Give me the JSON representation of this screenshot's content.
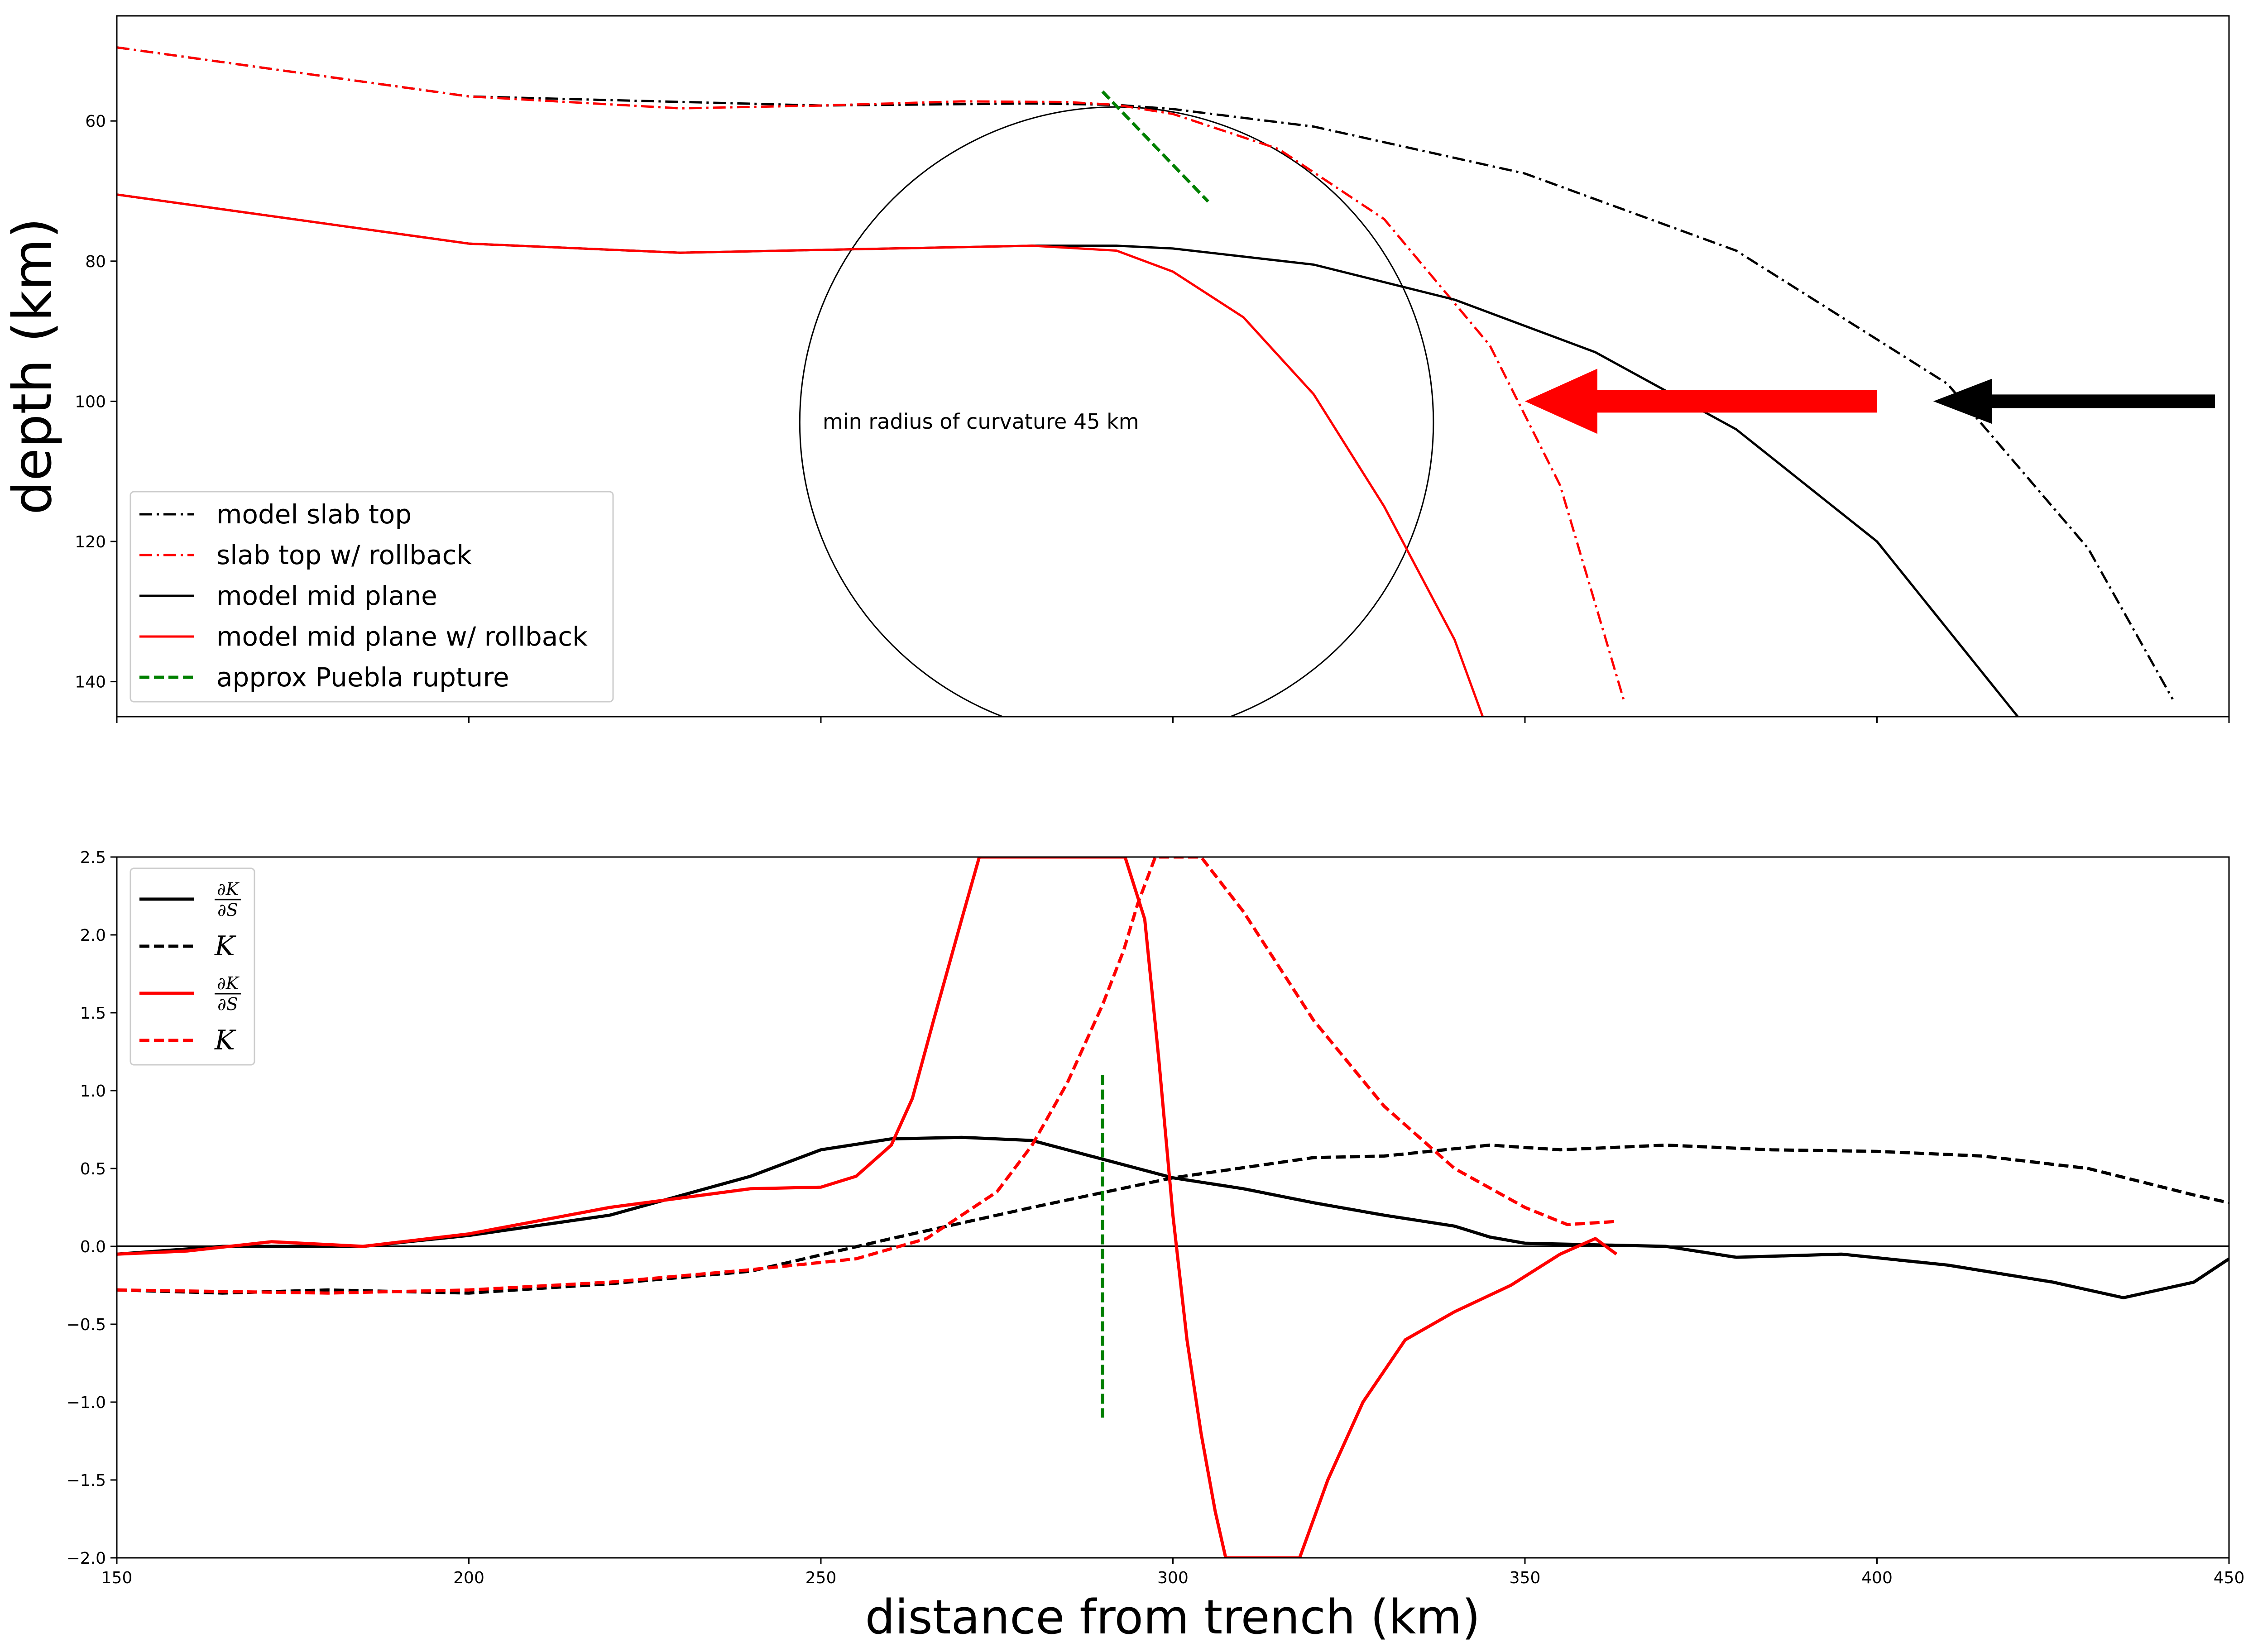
{
  "chart_data": [
    {
      "type": "line",
      "ylabel": "depth (km)",
      "xlim": [
        150,
        450
      ],
      "ylim": [
        145,
        45
      ],
      "yticks": [
        60,
        80,
        100,
        120,
        140
      ],
      "xticks": [
        150,
        200,
        250,
        300,
        350,
        400,
        450
      ],
      "legend_position": "lower-left",
      "series": [
        {
          "name": "model slab top",
          "color": "#000000",
          "dash": "dashdot",
          "x": [
            150,
            200,
            250,
            280,
            292,
            300,
            320,
            350,
            380,
            410,
            430,
            442
          ],
          "y": [
            49.5,
            56.5,
            57.8,
            57.5,
            57.7,
            58.3,
            60.8,
            67.5,
            78.5,
            97.5,
            121,
            142.5
          ]
        },
        {
          "name": "slab top w/ rollback",
          "color": "#ff0000",
          "dash": "dashdot",
          "x": [
            150,
            200,
            230,
            250,
            270,
            285,
            292,
            300,
            315,
            330,
            345,
            355,
            364
          ],
          "y": [
            49.5,
            56.5,
            58.2,
            57.8,
            57.2,
            57.3,
            57.7,
            59.0,
            64.0,
            74.0,
            92.0,
            112.0,
            142.5
          ]
        },
        {
          "name": "model mid plane",
          "color": "#000000",
          "dash": "solid",
          "x": [
            150,
            200,
            230,
            260,
            280,
            292,
            300,
            320,
            340,
            360,
            380,
            400,
            420
          ],
          "y": [
            70.5,
            77.5,
            78.8,
            78.2,
            77.8,
            77.8,
            78.2,
            80.5,
            85.5,
            93.0,
            104.0,
            120.0,
            145.0
          ]
        },
        {
          "name": "model mid plane w/ rollback",
          "color": "#ff0000",
          "dash": "solid",
          "x": [
            150,
            200,
            230,
            260,
            280,
            292,
            300,
            310,
            320,
            330,
            340,
            344
          ],
          "y": [
            70.5,
            77.5,
            78.8,
            78.2,
            77.8,
            78.5,
            81.5,
            88.0,
            99.0,
            115.0,
            134.0,
            145.0
          ]
        },
        {
          "name": "approx Puebla rupture",
          "color": "#008000",
          "dash": "dashed",
          "x": [
            290,
            305
          ],
          "y": [
            55.8,
            71.5
          ]
        }
      ],
      "circle": {
        "center_x": 292,
        "center_y": 103,
        "radius": 45
      },
      "annotations": [
        {
          "text": "min radius of curvature 45 km",
          "x": 250,
          "y": 103
        }
      ],
      "arrows": [
        {
          "color": "#ff0000",
          "from": [
            400,
            100
          ],
          "to": [
            350,
            100
          ]
        },
        {
          "color": "#000000",
          "from": [
            448,
            100
          ],
          "to": [
            408,
            100
          ]
        }
      ]
    },
    {
      "type": "line",
      "xlabel": "distance from trench (km)",
      "xlim": [
        150,
        450
      ],
      "ylim": [
        -2.0,
        2.5
      ],
      "yticks": [
        -2.0,
        -1.5,
        -1.0,
        -0.5,
        0.0,
        0.5,
        1.0,
        1.5,
        2.0,
        2.5
      ],
      "xticks": [
        150,
        200,
        250,
        300,
        350,
        400,
        450
      ],
      "legend_position": "top-left",
      "series": [
        {
          "name": "∂K/∂S",
          "color": "#000000",
          "dash": "solid",
          "x": [
            150,
            165,
            185,
            200,
            220,
            240,
            250,
            260,
            270,
            280,
            290,
            300,
            310,
            320,
            330,
            340,
            345,
            350,
            360,
            370,
            380,
            395,
            410,
            425,
            435,
            445,
            450
          ],
          "y": [
            -0.05,
            0.0,
            0.0,
            0.07,
            0.2,
            0.45,
            0.62,
            0.69,
            0.7,
            0.68,
            0.56,
            0.44,
            0.37,
            0.28,
            0.2,
            0.13,
            0.06,
            0.02,
            0.01,
            0.0,
            -0.07,
            -0.05,
            -0.12,
            -0.23,
            -0.33,
            -0.23,
            -0.08
          ]
        },
        {
          "name": "K",
          "color": "#000000",
          "dash": "dashed",
          "x": [
            150,
            165,
            180,
            200,
            220,
            240,
            260,
            280,
            300,
            320,
            330,
            345,
            355,
            370,
            385,
            400,
            415,
            430,
            445,
            450
          ],
          "y": [
            -0.28,
            -0.3,
            -0.28,
            -0.3,
            -0.24,
            -0.16,
            0.05,
            0.25,
            0.44,
            0.57,
            0.58,
            0.65,
            0.62,
            0.65,
            0.62,
            0.61,
            0.58,
            0.5,
            0.33,
            0.28
          ]
        },
        {
          "name": "∂K/∂S",
          "color": "#ff0000",
          "dash": "solid",
          "x": [
            150,
            160,
            172,
            185,
            200,
            220,
            240,
            250,
            255,
            260,
            263,
            266,
            270,
            272.5,
            293.2,
            296,
            298,
            300,
            302,
            304,
            306,
            307.5,
            318,
            322,
            327,
            333,
            340,
            348,
            355,
            360,
            363
          ],
          "y": [
            -0.05,
            -0.03,
            0.03,
            0.0,
            0.08,
            0.25,
            0.37,
            0.38,
            0.45,
            0.65,
            0.95,
            1.45,
            2.1,
            2.5,
            2.5,
            2.1,
            1.2,
            0.2,
            -0.6,
            -1.2,
            -1.7,
            -2.0,
            -2.0,
            -1.5,
            -1.0,
            -0.6,
            -0.42,
            -0.25,
            -0.05,
            0.05,
            -0.05
          ]
        },
        {
          "name": "K",
          "color": "#ff0000",
          "dash": "dashed",
          "x": [
            150,
            180,
            200,
            220,
            240,
            255,
            265,
            275,
            280,
            285,
            290,
            293,
            295,
            297.5,
            304,
            310,
            320,
            330,
            340,
            350,
            356,
            363
          ],
          "y": [
            -0.28,
            -0.3,
            -0.28,
            -0.23,
            -0.15,
            -0.08,
            0.05,
            0.35,
            0.65,
            1.05,
            1.55,
            1.9,
            2.2,
            2.5,
            2.5,
            2.15,
            1.45,
            0.9,
            0.5,
            0.25,
            0.14,
            0.16
          ]
        },
        {
          "name": "approx Puebla rupture",
          "color": "#008000",
          "dash": "dashed",
          "x": [
            290,
            290
          ],
          "y": [
            1.1,
            -1.1
          ]
        }
      ]
    }
  ],
  "legend1": {
    "items": [
      {
        "label": "model slab top"
      },
      {
        "label": "slab top w/ rollback"
      },
      {
        "label": "model mid plane"
      },
      {
        "label": "model mid plane w/ rollback"
      },
      {
        "label": "approx Puebla rupture"
      }
    ]
  },
  "legend2": {
    "items": [
      {
        "label": "∂K/∂S",
        "frac_top": "∂K",
        "frac_bottom": "∂S"
      },
      {
        "label": "K"
      },
      {
        "label": "∂K/∂S",
        "frac_top": "∂K",
        "frac_bottom": "∂S"
      },
      {
        "label": "K"
      }
    ]
  }
}
